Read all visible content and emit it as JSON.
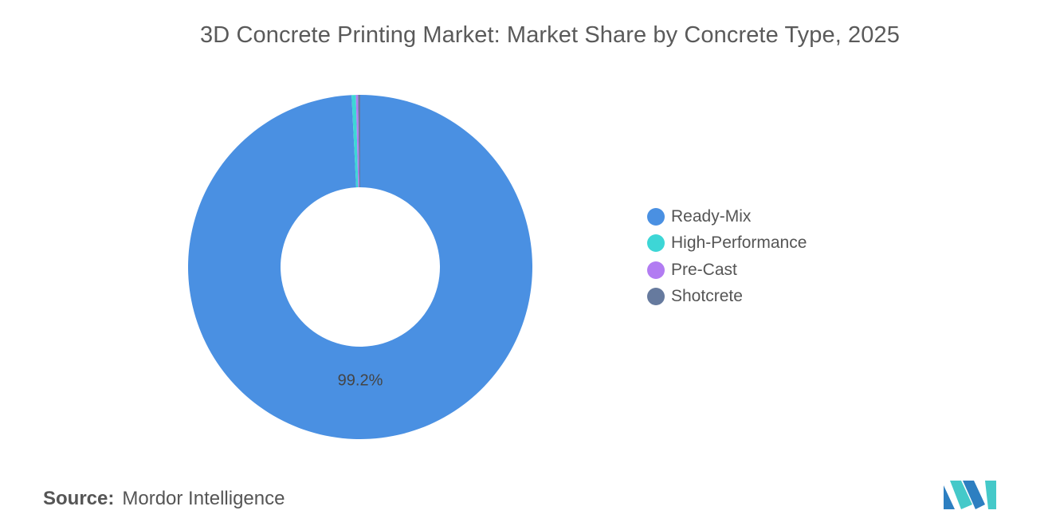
{
  "chart_data": {
    "type": "pie",
    "title": "3D Concrete Printing Market: Market Share by Concrete Type, 2025",
    "categories": [
      "Ready-Mix",
      "High-Performance",
      "Pre-Cast",
      "Shotcrete"
    ],
    "values": [
      99.2,
      0.4,
      0.2,
      0.2
    ],
    "unit": "%",
    "donut": true,
    "data_labels": [
      "99.2%",
      "",
      "",
      ""
    ],
    "colors": [
      "#4a90e2",
      "#3dd6d6",
      "#b27cf2",
      "#667a9e"
    ],
    "legend_position": "right"
  },
  "source": {
    "label": "Source:",
    "value": "Mordor Intelligence"
  },
  "logo": {
    "icon": "mordor-intelligence-logo-icon",
    "colors": [
      "#2d7fc1",
      "#45c9c9"
    ]
  }
}
